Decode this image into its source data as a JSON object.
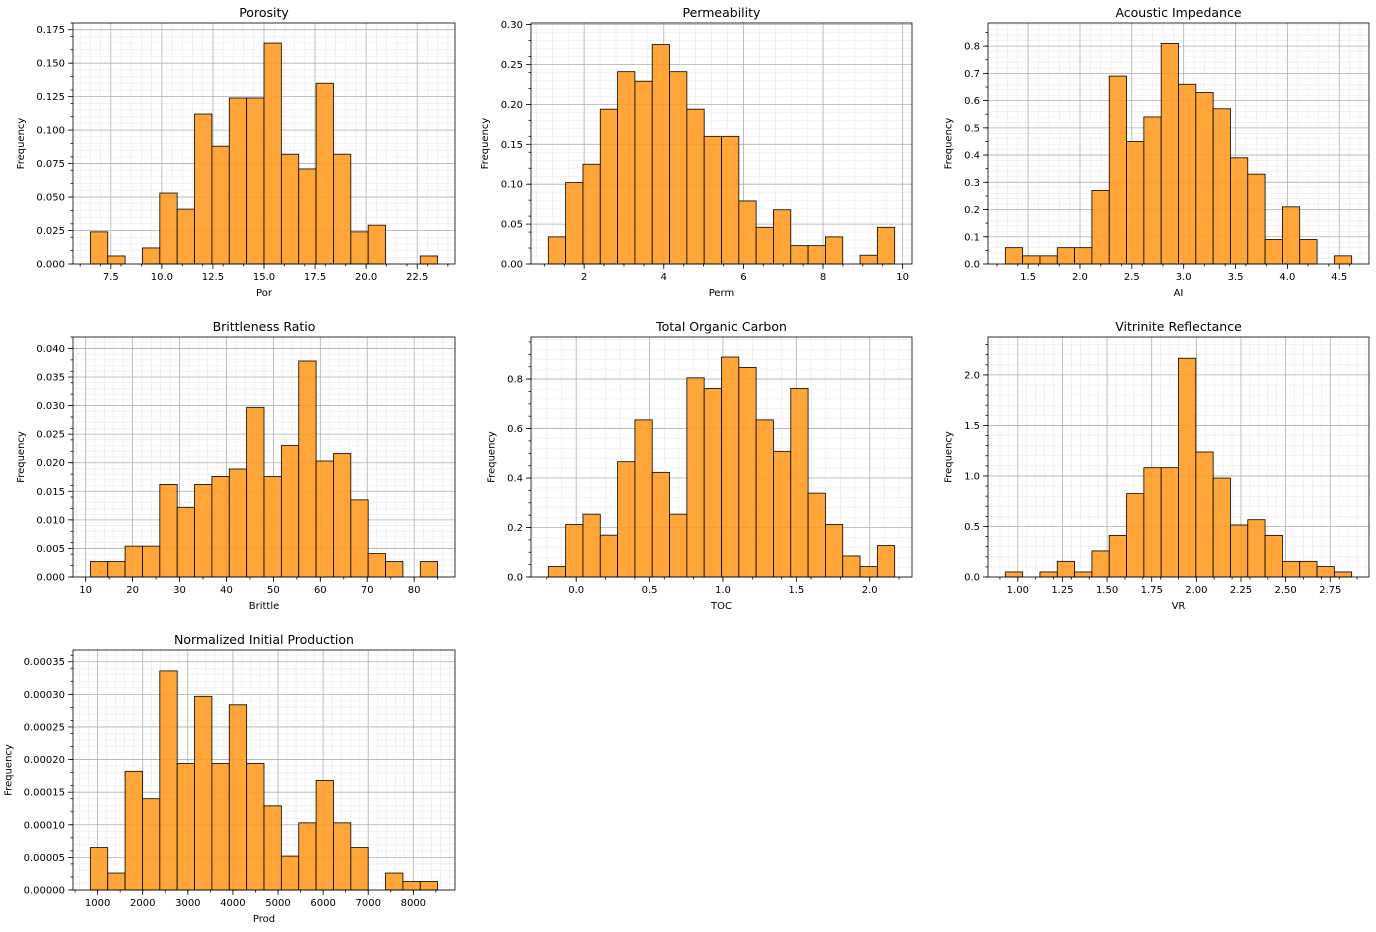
{
  "chart_data": [
    {
      "type": "bar",
      "title": "Porosity",
      "xlabel": "Por",
      "ylabel": "Frequency",
      "bin_edges": [
        6.5,
        7.35,
        8.2,
        9.05,
        9.9,
        10.75,
        11.6,
        12.45,
        13.3,
        14.15,
        15.0,
        15.85,
        16.7,
        17.55,
        18.4,
        19.25,
        20.1,
        20.95,
        21.8,
        22.65,
        23.5
      ],
      "values": [
        0.024,
        0.006,
        0,
        0.012,
        0.053,
        0.041,
        0.112,
        0.088,
        0.124,
        0.124,
        0.165,
        0.082,
        0.071,
        0.135,
        0.082,
        0.024,
        0.029,
        0,
        0,
        0.006
      ],
      "xlim": [
        5.65,
        24.35
      ],
      "ylim": [
        0,
        0.18
      ],
      "xticks": [
        7.5,
        10.0,
        12.5,
        15.0,
        17.5,
        20.0,
        22.5
      ],
      "xtick_labels": [
        "7.5",
        "10.0",
        "12.5",
        "15.0",
        "17.5",
        "20.0",
        "22.5"
      ],
      "yticks": [
        0,
        0.025,
        0.05,
        0.075,
        0.1,
        0.125,
        0.15,
        0.175
      ],
      "ytick_labels": [
        "0.000",
        "0.025",
        "0.050",
        "0.075",
        "0.100",
        "0.125",
        "0.150",
        "0.175"
      ],
      "grid": true
    },
    {
      "type": "bar",
      "title": "Permeability",
      "xlabel": "Perm",
      "ylabel": "Frequency",
      "bin_edges": [
        1.1,
        1.535,
        1.97,
        2.405,
        2.84,
        3.275,
        3.71,
        4.145,
        4.58,
        5.015,
        5.45,
        5.885,
        6.32,
        6.755,
        7.19,
        7.625,
        8.06,
        8.495,
        8.93,
        9.365,
        9.8
      ],
      "values": [
        0.034,
        0.102,
        0.125,
        0.194,
        0.241,
        0.229,
        0.275,
        0.241,
        0.194,
        0.16,
        0.16,
        0.079,
        0.046,
        0.068,
        0.023,
        0.023,
        0.034,
        0,
        0.011,
        0.046
      ],
      "xlim": [
        0.665,
        10.235
      ],
      "ylim": [
        0,
        0.302
      ],
      "xticks": [
        2,
        4,
        6,
        8,
        10
      ],
      "xtick_labels": [
        "2",
        "4",
        "6",
        "8",
        "10"
      ],
      "yticks": [
        0,
        0.05,
        0.1,
        0.15,
        0.2,
        0.25,
        0.3
      ],
      "ytick_labels": [
        "0.00",
        "0.05",
        "0.10",
        "0.15",
        "0.20",
        "0.25",
        "0.30"
      ],
      "grid": true
    },
    {
      "type": "bar",
      "title": "Acoustic Impedance",
      "xlabel": "AI",
      "ylabel": "Frequency",
      "bin_edges": [
        1.28,
        1.447,
        1.614,
        1.781,
        1.948,
        2.115,
        2.282,
        2.449,
        2.616,
        2.783,
        2.95,
        3.117,
        3.284,
        3.451,
        3.618,
        3.785,
        3.952,
        4.119,
        4.286,
        4.453,
        4.62
      ],
      "values": [
        0.06,
        0.03,
        0.03,
        0.06,
        0.06,
        0.27,
        0.69,
        0.45,
        0.54,
        0.81,
        0.66,
        0.63,
        0.57,
        0.39,
        0.33,
        0.09,
        0.21,
        0.09,
        0,
        0.03
      ],
      "xlim": [
        1.113,
        4.787
      ],
      "ylim": [
        0,
        0.885
      ],
      "xticks": [
        1.5,
        2.0,
        2.5,
        3.0,
        3.5,
        4.0,
        4.5
      ],
      "xtick_labels": [
        "1.5",
        "2.0",
        "2.5",
        "3.0",
        "3.5",
        "4.0",
        "4.5"
      ],
      "yticks": [
        0,
        0.1,
        0.2,
        0.3,
        0.4,
        0.5,
        0.6,
        0.7,
        0.8
      ],
      "ytick_labels": [
        "0.0",
        "0.1",
        "0.2",
        "0.3",
        "0.4",
        "0.5",
        "0.6",
        "0.7",
        "0.8"
      ],
      "grid": true
    },
    {
      "type": "bar",
      "title": "Brittleness Ratio",
      "xlabel": "Brittle",
      "ylabel": "Frequency",
      "bin_edges": [
        11.0,
        14.7,
        18.4,
        22.1,
        25.8,
        29.5,
        33.2,
        36.9,
        40.6,
        44.3,
        48.0,
        51.7,
        55.4,
        59.1,
        62.8,
        66.5,
        70.2,
        73.9,
        77.6,
        81.3,
        85.0
      ],
      "values": [
        0.0027,
        0.0027,
        0.0054,
        0.0054,
        0.0162,
        0.0122,
        0.0162,
        0.0176,
        0.0189,
        0.0297,
        0.0176,
        0.023,
        0.0378,
        0.0203,
        0.0216,
        0.0135,
        0.0041,
        0.0027,
        0,
        0.0027
      ],
      "xlim": [
        7.3,
        88.7
      ],
      "ylim": [
        0,
        0.042
      ],
      "xticks": [
        10,
        20,
        30,
        40,
        50,
        60,
        70,
        80
      ],
      "xtick_labels": [
        "10",
        "20",
        "30",
        "40",
        "50",
        "60",
        "70",
        "80"
      ],
      "yticks": [
        0,
        0.005,
        0.01,
        0.015,
        0.02,
        0.025,
        0.03,
        0.035,
        0.04
      ],
      "ytick_labels": [
        "0.000",
        "0.005",
        "0.010",
        "0.015",
        "0.020",
        "0.025",
        "0.030",
        "0.035",
        "0.040"
      ],
      "grid": true
    },
    {
      "type": "bar",
      "title": "Total Organic Carbon",
      "xlabel": "TOC",
      "ylabel": "Frequency",
      "bin_edges": [
        -0.19,
        -0.072,
        0.046,
        0.164,
        0.282,
        0.4,
        0.518,
        0.636,
        0.754,
        0.872,
        0.99,
        1.108,
        1.226,
        1.344,
        1.462,
        1.58,
        1.698,
        1.816,
        1.934,
        2.052,
        2.17
      ],
      "values": [
        0.042,
        0.212,
        0.254,
        0.169,
        0.466,
        0.635,
        0.423,
        0.254,
        0.805,
        0.762,
        0.889,
        0.847,
        0.635,
        0.508,
        0.762,
        0.339,
        0.212,
        0.085,
        0.042,
        0.127
      ],
      "xlim": [
        -0.308,
        2.288
      ],
      "ylim": [
        0,
        0.97
      ],
      "xticks": [
        0.0,
        0.5,
        1.0,
        1.5,
        2.0
      ],
      "xtick_labels": [
        "0.0",
        "0.5",
        "1.0",
        "1.5",
        "2.0"
      ],
      "yticks": [
        0,
        0.2,
        0.4,
        0.6,
        0.8
      ],
      "ytick_labels": [
        "0.0",
        "0.2",
        "0.4",
        "0.6",
        "0.8"
      ],
      "grid": true
    },
    {
      "type": "bar",
      "title": "Vitrinite Reflectance",
      "xlabel": "VR",
      "ylabel": "Frequency",
      "bin_edges": [
        0.93,
        1.027,
        1.124,
        1.221,
        1.318,
        1.415,
        1.512,
        1.609,
        1.706,
        1.803,
        1.9,
        1.997,
        2.094,
        2.191,
        2.288,
        2.385,
        2.482,
        2.579,
        2.676,
        2.773,
        2.87
      ],
      "values": [
        0.05,
        0,
        0.05,
        0.155,
        0.05,
        0.258,
        0.412,
        0.825,
        1.082,
        1.082,
        2.165,
        1.237,
        0.979,
        0.515,
        0.567,
        0.412,
        0.155,
        0.155,
        0.103,
        0.05
      ],
      "xlim": [
        0.833,
        2.967
      ],
      "ylim": [
        0,
        2.375
      ],
      "xticks": [
        1.0,
        1.25,
        1.5,
        1.75,
        2.0,
        2.25,
        2.5,
        2.75
      ],
      "xtick_labels": [
        "1.00",
        "1.25",
        "1.50",
        "1.75",
        "2.00",
        "2.25",
        "2.50",
        "2.75"
      ],
      "yticks": [
        0,
        0.5,
        1.0,
        1.5,
        2.0
      ],
      "ytick_labels": [
        "0.0",
        "0.5",
        "1.0",
        "1.5",
        "2.0"
      ],
      "grid": true
    },
    {
      "type": "bar",
      "title": "Normalized Initial Production",
      "xlabel": "Prod",
      "ylabel": "Frequency",
      "bin_edges": [
        839,
        1224,
        1609,
        1994,
        2379,
        2764,
        3149,
        3534,
        3919,
        4304,
        4689,
        5074,
        5459,
        5844,
        6229,
        6614,
        6999,
        7384,
        7769,
        8154,
        8539
      ],
      "values": [
        6.5e-05,
        2.6e-05,
        0.000182,
        0.00014,
        0.000336,
        0.000194,
        0.000297,
        0.000194,
        0.000284,
        0.000194,
        0.000129,
        5.2e-05,
        0.000103,
        0.000168,
        0.000103,
        6.5e-05,
        0,
        2.6e-05,
        1.3e-05,
        1.3e-05
      ],
      "xlim": [
        454,
        8924
      ],
      "ylim": [
        0,
        0.000368
      ],
      "xticks": [
        1000,
        2000,
        3000,
        4000,
        5000,
        6000,
        7000,
        8000
      ],
      "xtick_labels": [
        "1000",
        "2000",
        "3000",
        "4000",
        "5000",
        "6000",
        "7000",
        "8000"
      ],
      "yticks": [
        0,
        5e-05,
        0.0001,
        0.00015,
        0.0002,
        0.00025,
        0.0003,
        0.00035
      ],
      "ytick_labels": [
        "0.00000",
        "0.00005",
        "0.00010",
        "0.00015",
        "0.00020",
        "0.00025",
        "0.00030",
        "0.00035"
      ],
      "grid": true
    }
  ]
}
